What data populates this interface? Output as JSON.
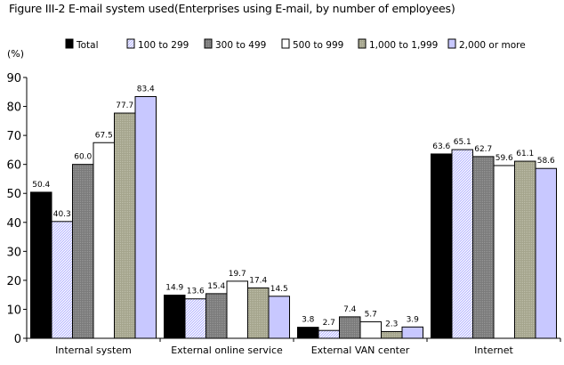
{
  "chart_data": {
    "type": "bar",
    "title": "Figure III-2 E-mail system used(Enterprises using E-mail, by number of employees)",
    "ylabel": "(%)",
    "xlabel": "",
    "ylim": [
      0,
      90
    ],
    "yticks": [
      0,
      10,
      20,
      30,
      40,
      50,
      60,
      70,
      80,
      90
    ],
    "grid": false,
    "legend_position": "top",
    "categories": [
      "Internal system",
      "External online service",
      "External VAN center",
      "Internet"
    ],
    "series": [
      {
        "name": "Total",
        "values": [
          50.4,
          14.9,
          3.8,
          63.6
        ],
        "labels": [
          "50.4",
          "14.9",
          "3.8",
          "63.6"
        ],
        "fill": "#000000",
        "pattern": "solid"
      },
      {
        "name": "100 to 299",
        "values": [
          40.3,
          13.6,
          2.7,
          65.1
        ],
        "labels": [
          "40.3",
          "13.6",
          "2.7",
          "65.1"
        ],
        "fill": "#c8c8ff",
        "pattern": "hatch"
      },
      {
        "name": "300 to 499",
        "values": [
          60.0,
          15.4,
          7.4,
          62.7
        ],
        "labels": [
          "60.0",
          "15.4",
          "7.4",
          "62.7"
        ],
        "fill": "#808080",
        "pattern": "dots"
      },
      {
        "name": "500 to 999",
        "values": [
          67.5,
          19.7,
          5.7,
          59.6
        ],
        "labels": [
          "67.5",
          "19.7",
          "5.7",
          "59.6"
        ],
        "fill": "#ffffff",
        "pattern": "solid"
      },
      {
        "name": "1,000 to 1,999",
        "values": [
          77.7,
          17.4,
          2.3,
          61.1
        ],
        "labels": [
          "77.7",
          "17.4",
          "2.3",
          "61.1"
        ],
        "fill": "#a8a890",
        "pattern": "dots"
      },
      {
        "name": "2,000 or more",
        "values": [
          83.4,
          14.5,
          3.9,
          58.6
        ],
        "labels": [
          "83.4",
          "14.5",
          "3.9",
          "58.6"
        ],
        "fill": "#c8c8ff",
        "pattern": "solid"
      }
    ]
  }
}
